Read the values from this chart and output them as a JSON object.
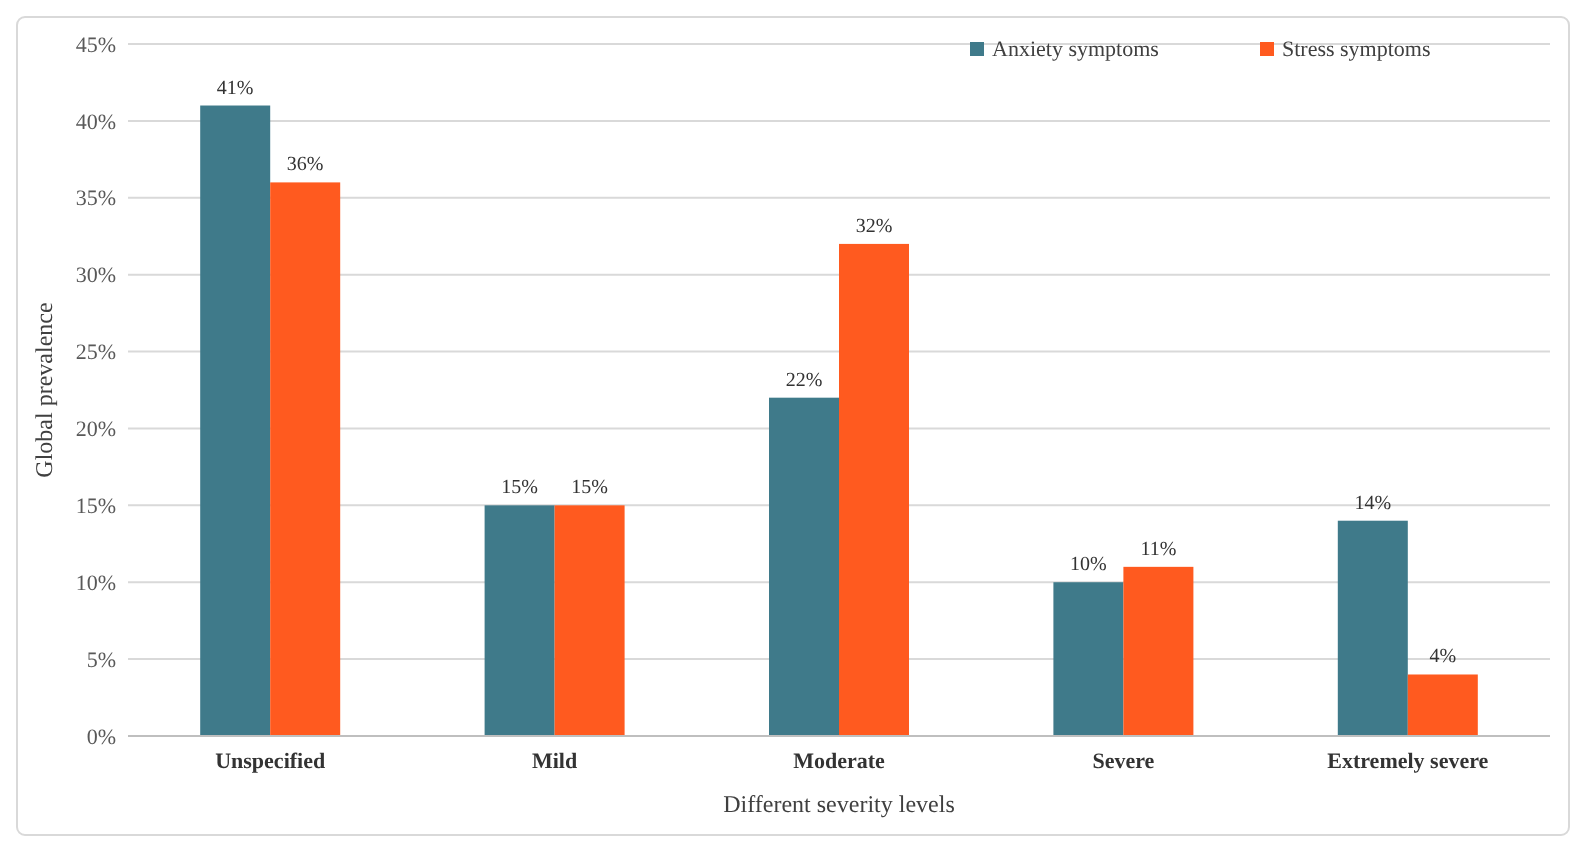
{
  "chart_data": {
    "type": "bar",
    "xlabel": "Different severity levels",
    "ylabel": "Global prevalence",
    "categories": [
      "Unspecified",
      "Mild",
      "Moderate",
      "Severe",
      "Extremely severe"
    ],
    "series": [
      {
        "name": "Anxiety symptoms",
        "color": "#3f7a8a",
        "values": [
          41,
          15,
          22,
          10,
          14
        ],
        "value_labels": [
          "41%",
          "15%",
          "22%",
          "10%",
          "14%"
        ]
      },
      {
        "name": "Stress symptoms",
        "color": "#ff5a1f",
        "values": [
          36,
          15,
          32,
          11,
          4
        ],
        "value_labels": [
          "36%",
          "15%",
          "32%",
          "11%",
          "4%"
        ]
      }
    ],
    "ylim": [
      0,
      45
    ],
    "yticks": [
      {
        "value": 0,
        "label": "0%"
      },
      {
        "value": 5,
        "label": "5%"
      },
      {
        "value": 10,
        "label": "10%"
      },
      {
        "value": 15,
        "label": "15%"
      },
      {
        "value": 20,
        "label": "20%"
      },
      {
        "value": 25,
        "label": "25%"
      },
      {
        "value": 30,
        "label": "30%"
      },
      {
        "value": 35,
        "label": "35%"
      },
      {
        "value": 40,
        "label": "40%"
      },
      {
        "value": 45,
        "label": "45%"
      }
    ],
    "grid": "y",
    "legend": "top right"
  }
}
